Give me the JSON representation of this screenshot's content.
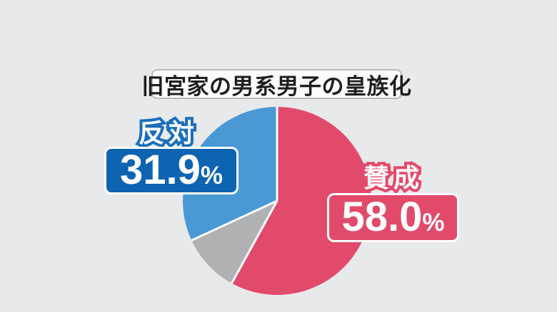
{
  "page": {
    "background_color": "#e8e9eb"
  },
  "title": {
    "text": "旧宮家の男系男子の皇族化"
  },
  "chart_data": {
    "type": "pie",
    "title": "旧宮家の男系男子の皇族化",
    "start_angle_deg": 0,
    "direction": "clockwise",
    "slices": [
      {
        "label": "賛成",
        "value": 58.0,
        "color": "#e24a6c"
      },
      {
        "label": "",
        "value": 10.1,
        "color": "#b0b1b3"
      },
      {
        "label": "反対",
        "value": 31.9,
        "color": "#4a99d5"
      }
    ],
    "separator_color": "#ffffff",
    "legend": "none"
  },
  "callouts": {
    "agree": {
      "label": "賛成",
      "value": "58.0",
      "unit": "%",
      "box_color": "#e24a6c",
      "outline_color": "#e24a6c"
    },
    "oppose": {
      "label": "反対",
      "value": "31.9",
      "unit": "%",
      "box_color": "#0e64b0",
      "outline_color": "#1b6fbb"
    }
  }
}
